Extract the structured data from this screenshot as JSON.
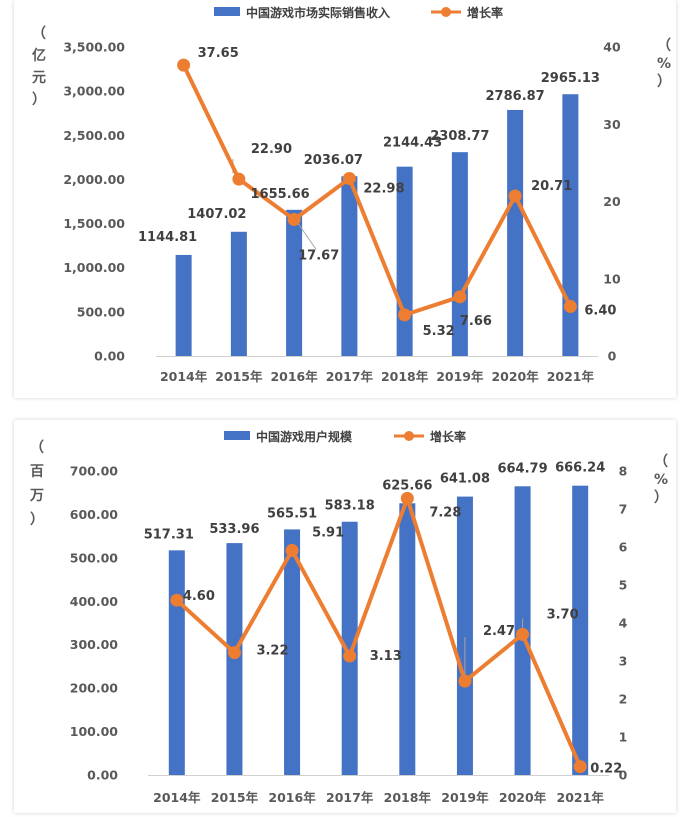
{
  "chart_data": [
    {
      "type": "bar+line",
      "categories": [
        "2014年",
        "2015年",
        "2016年",
        "2017年",
        "2018年",
        "2019年",
        "2020年",
        "2021年"
      ],
      "series": [
        {
          "name": "中国游戏市场实际销售收入",
          "type": "bar",
          "axis": "left",
          "color": "#4472C4",
          "values": [
            1144.81,
            1407.02,
            1655.66,
            2036.07,
            2144.43,
            2308.77,
            2786.87,
            2965.13
          ],
          "labels": [
            "1144.81",
            "1407.02",
            "1655.66",
            "2036.07",
            "2144.43",
            "2308.77",
            "2786.87",
            "2965.13"
          ]
        },
        {
          "name": "增长率",
          "type": "line",
          "axis": "right",
          "color": "#ED7D31",
          "values": [
            37.65,
            22.9,
            17.67,
            22.98,
            5.32,
            7.66,
            20.71,
            6.4
          ],
          "labels": [
            "37.65",
            "22.90",
            "17.67",
            "22.98",
            "5.32",
            "7.66",
            "20.71",
            "6.40"
          ]
        }
      ],
      "ylabel": [
        "（",
        "亿",
        "元",
        "）"
      ],
      "y2label": [
        "（",
        "%",
        "）"
      ],
      "ylim": [
        0,
        3500
      ],
      "yticks": [
        "0.00",
        "500.00",
        "1,000.00",
        "1,500.00",
        "2,000.00",
        "2,500.00",
        "3,000.00",
        "3,500.00"
      ],
      "y2lim": [
        0,
        40
      ],
      "y2ticks": [
        "0",
        "10",
        "20",
        "30",
        "40"
      ],
      "legend": "top-center",
      "grid": false
    },
    {
      "type": "bar+line",
      "categories": [
        "2014年",
        "2015年",
        "2016年",
        "2017年",
        "2018年",
        "2019年",
        "2020年",
        "2021年"
      ],
      "series": [
        {
          "name": "中国游戏用户规模",
          "type": "bar",
          "axis": "left",
          "color": "#4472C4",
          "values": [
            517.31,
            533.96,
            565.51,
            583.18,
            625.66,
            641.08,
            664.79,
            666.24
          ],
          "labels": [
            "517.31",
            "533.96",
            "565.51",
            "583.18",
            "625.66",
            "641.08",
            "664.79",
            "666.24"
          ]
        },
        {
          "name": "增长率",
          "type": "line",
          "axis": "right",
          "color": "#ED7D31",
          "values": [
            4.6,
            3.22,
            5.91,
            3.13,
            7.28,
            2.47,
            3.7,
            0.22
          ],
          "labels": [
            "4.60",
            "3.22",
            "5.91",
            "3.13",
            "7.28",
            "2.47",
            "3.70",
            "0.22"
          ]
        }
      ],
      "ylabel": [
        "（",
        "百",
        "万",
        "）"
      ],
      "y2label": [
        "（",
        "%",
        "）"
      ],
      "ylim": [
        0,
        700
      ],
      "yticks": [
        "0.00",
        "100.00",
        "200.00",
        "300.00",
        "400.00",
        "500.00",
        "600.00",
        "700.00"
      ],
      "y2lim": [
        0,
        8
      ],
      "y2ticks": [
        "0",
        "1",
        "2",
        "3",
        "4",
        "5",
        "6",
        "7",
        "8"
      ],
      "legend": "top-center",
      "grid": false
    }
  ]
}
